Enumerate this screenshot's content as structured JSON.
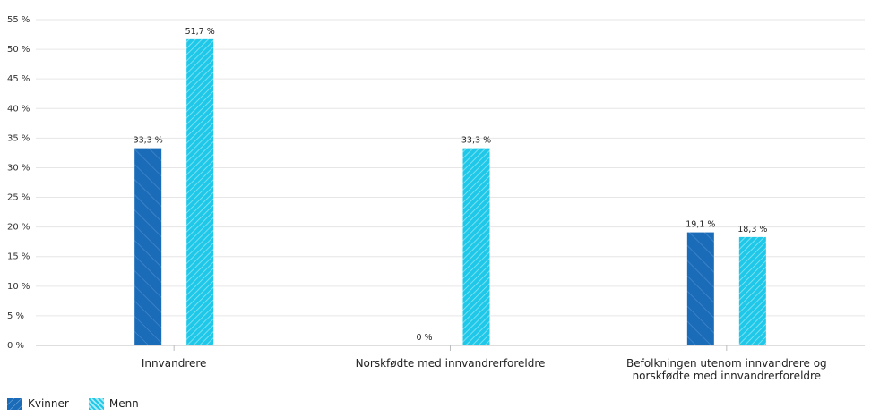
{
  "chart_data": {
    "type": "bar",
    "categories": [
      [
        "Innvandrere"
      ],
      [
        "Norskfødte med innvandrerforeldre"
      ],
      [
        "Befolkningen utenom innvandrere og",
        "norskfødte med innvandrerforeldre"
      ]
    ],
    "series": [
      {
        "name": "Kvinner",
        "values": [
          33.3,
          0,
          19.1
        ],
        "labels": [
          "33,3 %",
          "0 %",
          "19,1 %"
        ],
        "color": "#1a6bb8"
      },
      {
        "name": "Menn",
        "values": [
          51.7,
          33.3,
          18.3
        ],
        "labels": [
          "51,7 %",
          "33,3 %",
          "18,3 %"
        ],
        "color": "#1fc8e8"
      }
    ],
    "y_ticks": [
      0,
      5,
      10,
      15,
      20,
      25,
      30,
      35,
      40,
      45,
      50,
      55
    ],
    "y_tick_labels": [
      "0 %",
      "5 %",
      "10 %",
      "15 %",
      "20 %",
      "25 %",
      "30 %",
      "35 %",
      "40 %",
      "45 %",
      "50 %",
      "55 %"
    ],
    "ylim": [
      0,
      55
    ],
    "grid": true,
    "legend_position": "bottom-left",
    "title": "",
    "xlabel": "",
    "ylabel": ""
  }
}
